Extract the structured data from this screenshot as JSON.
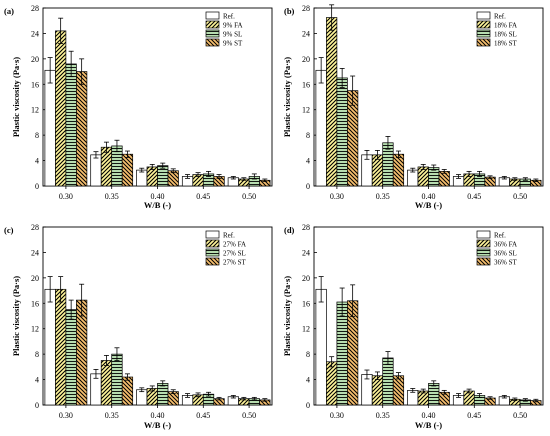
{
  "chart_data": [
    {
      "type": "bar",
      "panel_label": "(a)",
      "categories": [
        "0.30",
        "0.35",
        "0.40",
        "0.45",
        "0.50"
      ],
      "xlabel": "W/B (-)",
      "ylabel": "Plastic viscosity (Pa·s)",
      "ylim": [
        0,
        28
      ],
      "yticks": [
        "0",
        "4",
        "8",
        "12",
        "16",
        "20",
        "24",
        "28"
      ],
      "legend_position": "top-right",
      "series": [
        {
          "name": "Ref.",
          "values": [
            18.2,
            4.9,
            2.5,
            1.5,
            1.3
          ],
          "errors": [
            2.0,
            0.5,
            0.3,
            0.3,
            0.2
          ]
        },
        {
          "name": "9% FA",
          "values": [
            24.4,
            6.1,
            3.0,
            1.8,
            1.1
          ],
          "errors": [
            2.0,
            0.8,
            0.4,
            0.3,
            0.2
          ]
        },
        {
          "name": "9% SL",
          "values": [
            19.2,
            6.3,
            3.2,
            1.9,
            1.5
          ],
          "errors": [
            2.0,
            0.9,
            0.4,
            0.4,
            0.4
          ]
        },
        {
          "name": "9% ST",
          "values": [
            18.0,
            5.0,
            2.4,
            1.5,
            0.9
          ],
          "errors": [
            2.0,
            0.5,
            0.3,
            0.3,
            0.2
          ]
        }
      ]
    },
    {
      "type": "bar",
      "panel_label": "(b)",
      "categories": [
        "0.30",
        "0.35",
        "0.40",
        "0.45",
        "0.50"
      ],
      "xlabel": "W/B (-)",
      "ylabel": "Plastic viscosity (Pa·s)",
      "ylim": [
        0,
        28
      ],
      "yticks": [
        "0",
        "4",
        "8",
        "12",
        "16",
        "20",
        "24",
        "28"
      ],
      "legend_position": "top-right",
      "series": [
        {
          "name": "Ref.",
          "values": [
            18.2,
            4.9,
            2.5,
            1.5,
            1.3
          ],
          "errors": [
            2.0,
            0.7,
            0.3,
            0.3,
            0.2
          ]
        },
        {
          "name": "18% FA",
          "values": [
            26.5,
            4.9,
            3.0,
            1.9,
            1.1
          ],
          "errors": [
            2.0,
            0.7,
            0.4,
            0.4,
            0.2
          ]
        },
        {
          "name": "18% SL",
          "values": [
            17.0,
            6.8,
            2.9,
            1.9,
            1.1
          ],
          "errors": [
            1.5,
            1.0,
            0.4,
            0.4,
            0.2
          ]
        },
        {
          "name": "18% ST",
          "values": [
            15.0,
            5.0,
            2.3,
            1.4,
            0.9
          ],
          "errors": [
            2.3,
            0.5,
            0.3,
            0.2,
            0.2
          ]
        }
      ]
    },
    {
      "type": "bar",
      "panel_label": "(c)",
      "categories": [
        "0.30",
        "0.35",
        "0.40",
        "0.45",
        "0.50"
      ],
      "xlabel": "W/B (-)",
      "ylabel": "Plastic viscosity (Pa·s)",
      "ylim": [
        0,
        28
      ],
      "yticks": [
        "0",
        "4",
        "8",
        "12",
        "16",
        "20",
        "24",
        "28"
      ],
      "legend_position": "top-right",
      "series": [
        {
          "name": "Ref.",
          "values": [
            18.2,
            4.9,
            2.4,
            1.5,
            1.3
          ],
          "errors": [
            2.0,
            0.7,
            0.3,
            0.3,
            0.2
          ]
        },
        {
          "name": "27% FA",
          "values": [
            18.2,
            7.0,
            2.6,
            1.6,
            1.0
          ],
          "errors": [
            2.0,
            0.8,
            0.4,
            0.3,
            0.2
          ]
        },
        {
          "name": "27% SL",
          "values": [
            15.0,
            8.0,
            3.4,
            1.7,
            1.0
          ],
          "errors": [
            1.5,
            1.0,
            0.4,
            0.3,
            0.2
          ]
        },
        {
          "name": "27% ST",
          "values": [
            16.5,
            4.4,
            2.1,
            1.0,
            0.8
          ],
          "errors": [
            2.5,
            0.5,
            0.3,
            0.2,
            0.2
          ]
        }
      ]
    },
    {
      "type": "bar",
      "panel_label": "(d)",
      "categories": [
        "0.30",
        "0.35",
        "0.40",
        "0.45",
        "0.50"
      ],
      "xlabel": "W/B (-)",
      "ylabel": "Plastic viscosity (Pa·s)",
      "ylim": [
        0,
        28
      ],
      "yticks": [
        "0",
        "4",
        "8",
        "12",
        "16",
        "20",
        "24",
        "28"
      ],
      "legend_position": "top-right",
      "series": [
        {
          "name": "Ref.",
          "values": [
            18.2,
            4.8,
            2.3,
            1.5,
            1.3
          ],
          "errors": [
            2.0,
            0.7,
            0.3,
            0.3,
            0.2
          ]
        },
        {
          "name": "36% FA",
          "values": [
            6.8,
            4.6,
            2.2,
            2.2,
            0.9
          ],
          "errors": [
            0.8,
            0.6,
            0.3,
            0.3,
            0.2
          ]
        },
        {
          "name": "36% SL",
          "values": [
            16.2,
            7.4,
            3.4,
            1.5,
            0.8
          ],
          "errors": [
            2.2,
            1.0,
            0.4,
            0.3,
            0.2
          ]
        },
        {
          "name": "36% ST",
          "values": [
            16.4,
            4.6,
            2.0,
            1.1,
            0.7
          ],
          "errors": [
            2.5,
            0.5,
            0.3,
            0.2,
            0.2
          ]
        }
      ]
    }
  ]
}
